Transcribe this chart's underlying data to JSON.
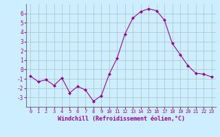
{
  "x": [
    0,
    1,
    2,
    3,
    4,
    5,
    6,
    7,
    8,
    9,
    10,
    11,
    12,
    13,
    14,
    15,
    16,
    17,
    18,
    19,
    20,
    21,
    22,
    23
  ],
  "y": [
    -0.7,
    -1.3,
    -1.1,
    -1.7,
    -0.9,
    -2.5,
    -1.8,
    -2.2,
    -3.4,
    -2.8,
    -0.5,
    1.2,
    3.8,
    5.5,
    6.2,
    6.5,
    6.3,
    5.3,
    2.8,
    1.6,
    0.4,
    -0.4,
    -0.5,
    -0.8
  ],
  "line_color": "#990099",
  "marker_color": "#990099",
  "bg_color": "#cceeff",
  "grid_color": "#aacccc",
  "xlabel": "Windchill (Refroidissement éolien,°C)",
  "xlabel_color": "#990099",
  "tick_color": "#990099",
  "ylim": [
    -4,
    7
  ],
  "xlim": [
    -0.5,
    23.5
  ],
  "yticks": [
    -3,
    -2,
    -1,
    0,
    1,
    2,
    3,
    4,
    5,
    6
  ],
  "xticks": [
    0,
    1,
    2,
    3,
    4,
    5,
    6,
    7,
    8,
    9,
    10,
    11,
    12,
    13,
    14,
    15,
    16,
    17,
    18,
    19,
    20,
    21,
    22,
    23
  ],
  "xtick_labels": [
    "0",
    "1",
    "2",
    "3",
    "4",
    "5",
    "6",
    "7",
    "8",
    "9",
    "10",
    "11",
    "12",
    "13",
    "14",
    "15",
    "16",
    "17",
    "18",
    "19",
    "20",
    "21",
    "22",
    "23"
  ]
}
